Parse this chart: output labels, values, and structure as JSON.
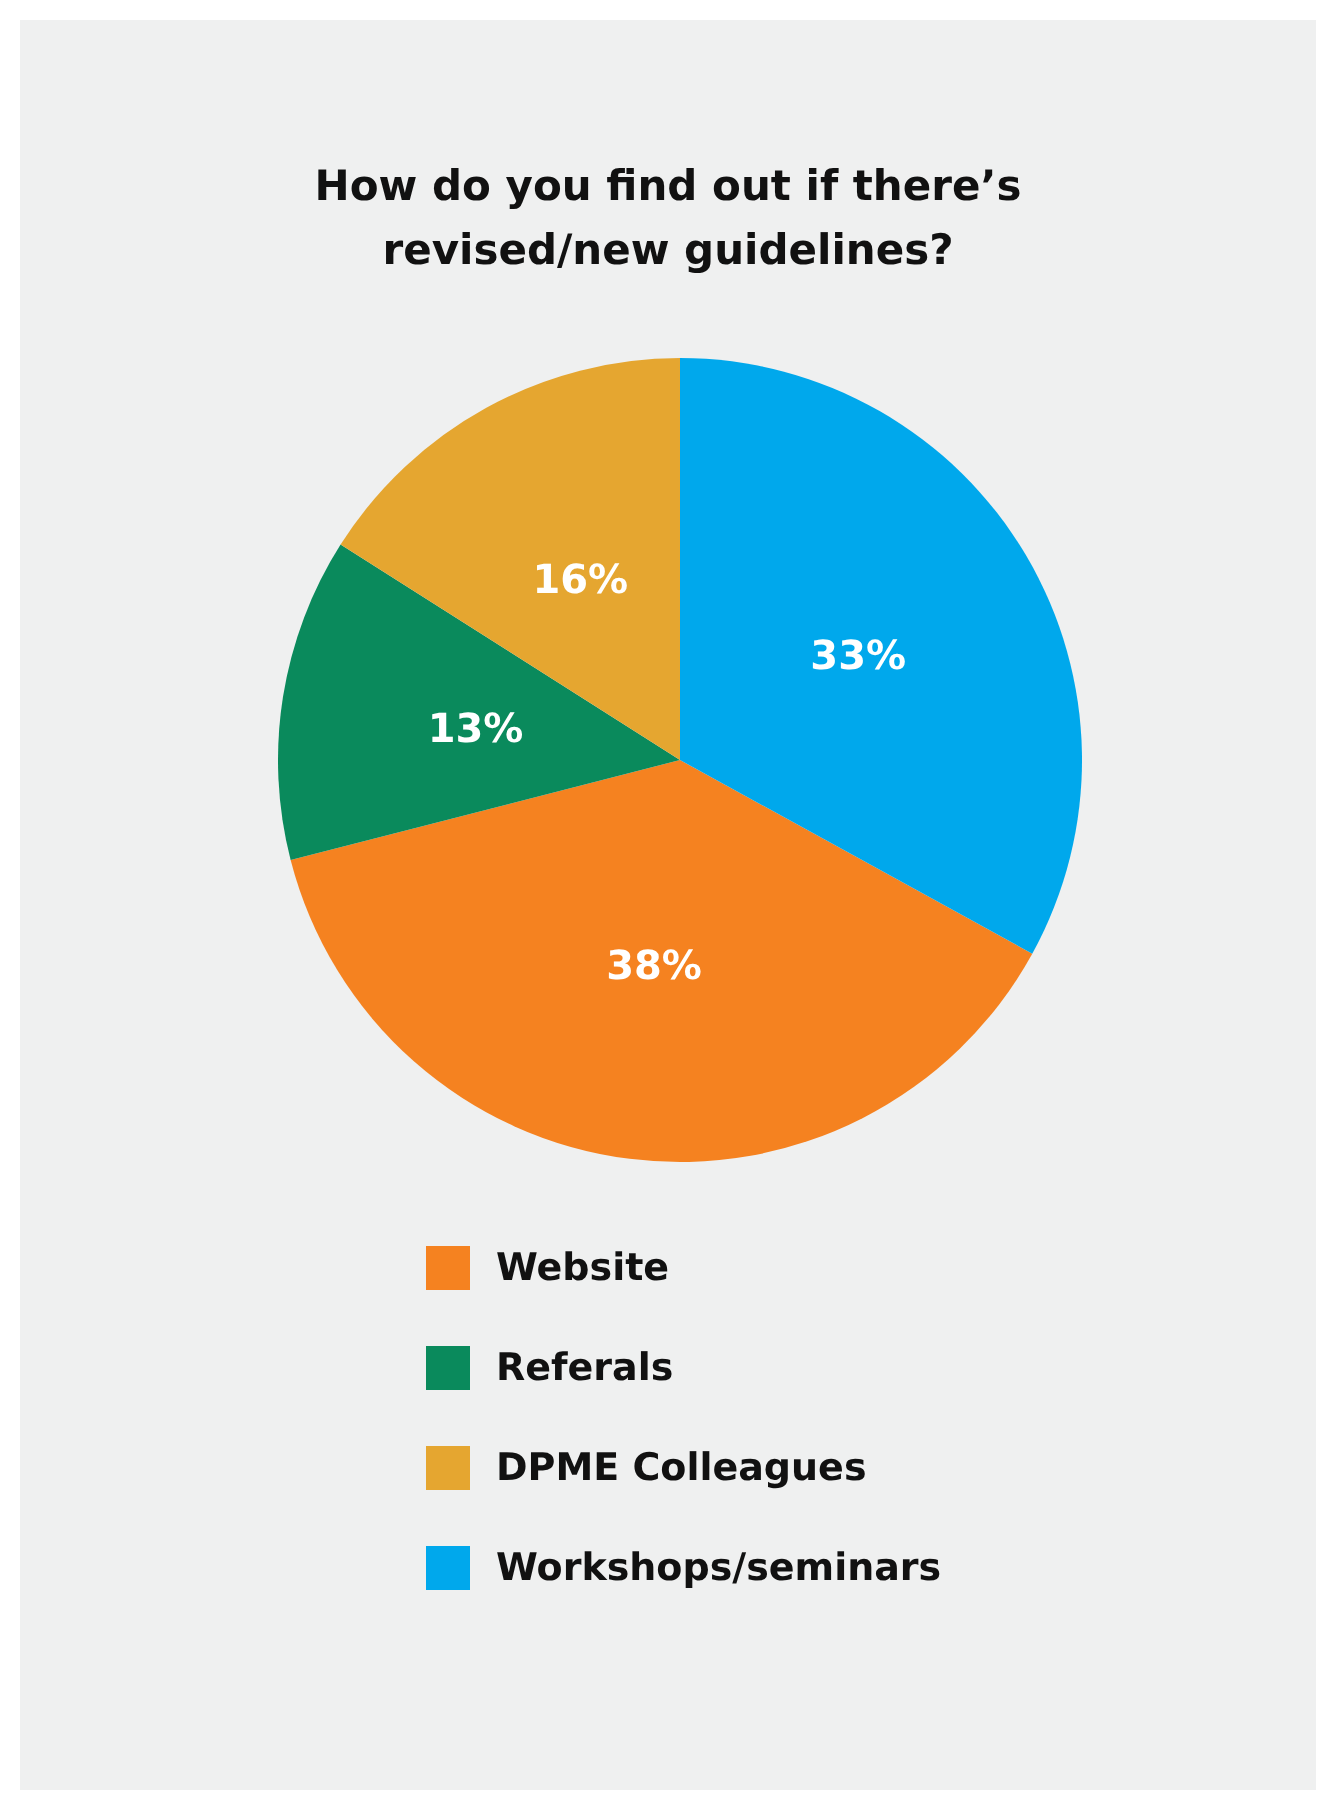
{
  "chart_data": {
    "type": "pie",
    "title": "How do you find out if there’s\nrevised/new guidelines?",
    "categories": [
      "Website",
      "Referals",
      "DPME Colleagues",
      "Workshops/seminars"
    ],
    "values": [
      38,
      13,
      16,
      33
    ],
    "colors": [
      "#f58220",
      "#0a8a5c",
      "#e5a630",
      "#00a8ec"
    ],
    "value_labels": [
      "38%",
      "13%",
      "16%",
      "33%"
    ],
    "legend": "bottom"
  }
}
